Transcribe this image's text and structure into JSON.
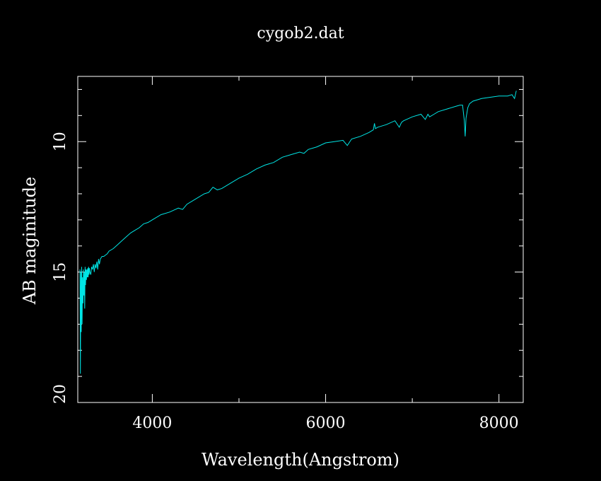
{
  "chart_data": {
    "type": "line",
    "title": "cygob2.dat",
    "xlabel": "Wavelength(Angstrom)",
    "ylabel": "AB maginitude",
    "xlim": [
      3140,
      8280
    ],
    "ylim": [
      20,
      7.5
    ],
    "y_inverted": true,
    "x_ticks": [
      4000,
      6000,
      8000
    ],
    "y_ticks": [
      10,
      15,
      20
    ],
    "x_minor_step": 1000,
    "y_minor_step": 1,
    "grid": false,
    "colors": {
      "background": "#000000",
      "axes": "#ffffff",
      "line": "#00e5e5"
    },
    "series": [
      {
        "x": [
          3165,
          3170,
          3175,
          3180,
          3185,
          3190,
          3195,
          3200,
          3205,
          3210,
          3215,
          3220,
          3225,
          3230,
          3235,
          3240,
          3245,
          3250,
          3255,
          3260,
          3265,
          3270,
          3275,
          3280,
          3290,
          3300,
          3310,
          3320,
          3330,
          3340,
          3350,
          3360,
          3370,
          3380,
          3390,
          3400,
          3420,
          3440,
          3460,
          3480,
          3500,
          3550,
          3600,
          3650,
          3700,
          3750,
          3800,
          3850,
          3900,
          3950,
          4000,
          4100,
          4200,
          4300,
          4350,
          4400,
          4500,
          4600,
          4650,
          4700,
          4750,
          4800,
          4900,
          5000,
          5100,
          5200,
          5300,
          5400,
          5500,
          5600,
          5700,
          5750,
          5800,
          5900,
          6000,
          6100,
          6200,
          6250,
          6300,
          6400,
          6500,
          6550,
          6563,
          6575,
          6600,
          6700,
          6800,
          6850,
          6870,
          6880,
          6900,
          7000,
          7100,
          7150,
          7180,
          7200,
          7250,
          7300,
          7400,
          7500,
          7550,
          7580,
          7600,
          7610,
          7620,
          7640,
          7660,
          7700,
          7800,
          7900,
          8000,
          8100,
          8150,
          8180,
          8200
        ],
        "y": [
          14.9,
          18.9,
          15.0,
          17.3,
          14.8,
          17.0,
          15.2,
          16.2,
          14.9,
          15.9,
          15.0,
          16.4,
          14.8,
          15.5,
          14.9,
          15.3,
          14.9,
          15.2,
          14.85,
          15.2,
          14.8,
          15.1,
          14.85,
          15.0,
          15.1,
          14.8,
          14.9,
          14.7,
          15.0,
          14.7,
          14.85,
          14.6,
          14.9,
          14.5,
          14.7,
          14.5,
          14.4,
          14.4,
          14.35,
          14.3,
          14.2,
          14.1,
          13.95,
          13.8,
          13.65,
          13.5,
          13.4,
          13.3,
          13.15,
          13.1,
          13.0,
          12.8,
          12.7,
          12.55,
          12.6,
          12.4,
          12.2,
          12.0,
          11.95,
          11.75,
          11.85,
          11.8,
          11.6,
          11.4,
          11.25,
          11.05,
          10.9,
          10.8,
          10.6,
          10.5,
          10.4,
          10.45,
          10.3,
          10.2,
          10.05,
          10.0,
          9.95,
          10.15,
          9.9,
          9.8,
          9.65,
          9.55,
          9.3,
          9.5,
          9.45,
          9.35,
          9.2,
          9.45,
          9.3,
          9.25,
          9.2,
          9.05,
          8.95,
          9.15,
          8.95,
          9.05,
          8.95,
          8.85,
          8.75,
          8.65,
          8.6,
          8.6,
          9.2,
          9.8,
          9.1,
          8.7,
          8.55,
          8.45,
          8.35,
          8.3,
          8.25,
          8.25,
          8.2,
          8.35,
          8.05
        ]
      }
    ]
  }
}
